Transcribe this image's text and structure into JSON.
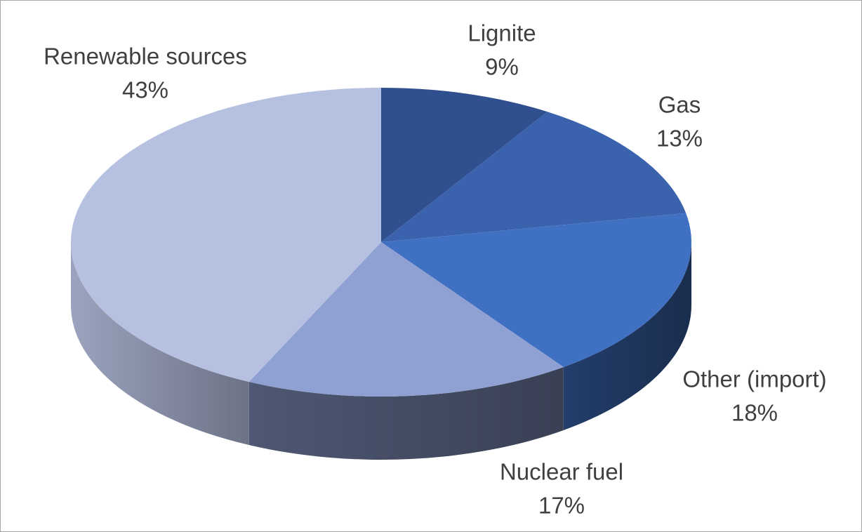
{
  "chart_data": {
    "type": "pie3d",
    "categories": [
      "Lignite",
      "Gas",
      "Other (import)",
      "Nuclear fuel",
      "Renewable sources"
    ],
    "values": [
      9,
      13,
      18,
      17,
      43
    ],
    "value_labels": [
      "9%",
      "13%",
      "18%",
      "17%",
      "43%"
    ],
    "colors": [
      "#2f4f8f",
      "#3a62ad",
      "#4070c2",
      "#8fa0d2",
      "#b6c0e0"
    ]
  }
}
